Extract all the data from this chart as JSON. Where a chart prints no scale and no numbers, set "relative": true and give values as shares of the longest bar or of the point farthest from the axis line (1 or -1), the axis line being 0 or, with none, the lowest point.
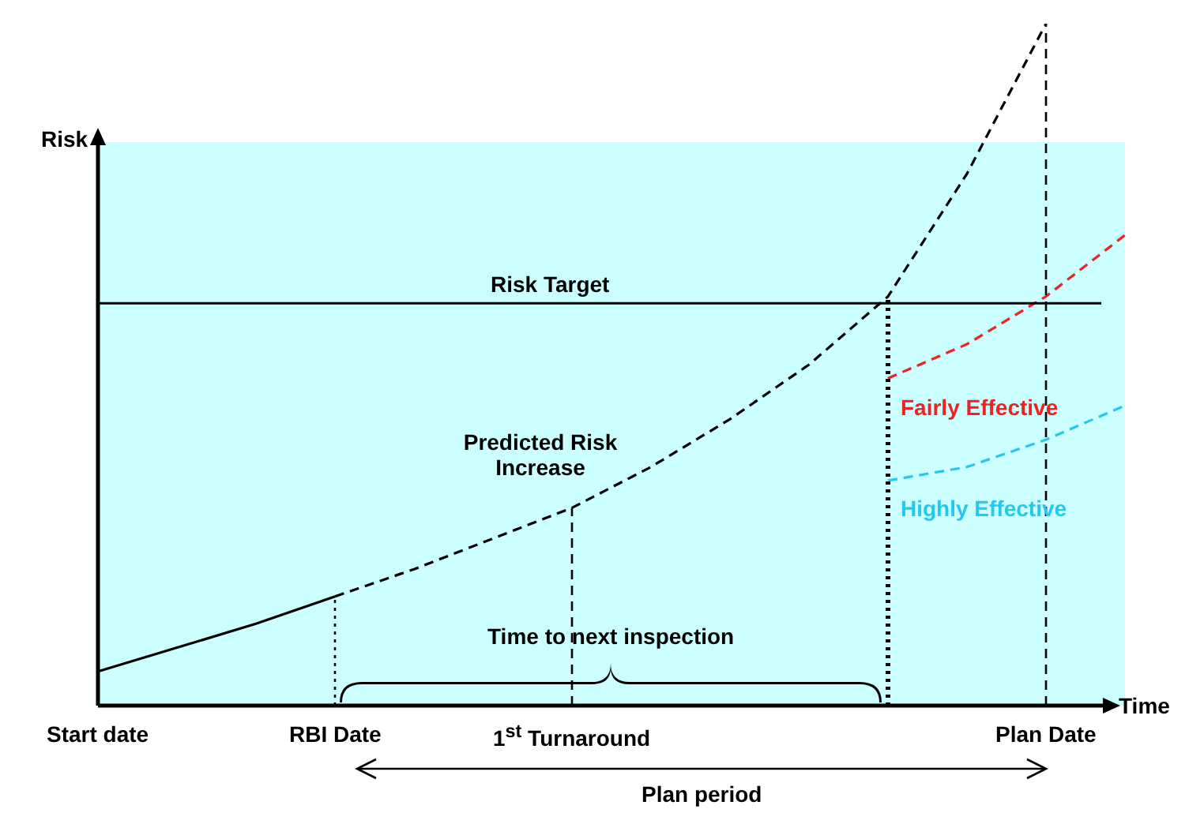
{
  "chart_data": {
    "type": "line",
    "relative": true,
    "xlabel": "Time",
    "ylabel": "Risk",
    "categories": [
      "Start date",
      null,
      null,
      "RBI Date",
      null,
      null,
      "1$^{st}$ Turnaround",
      null,
      null,
      null,
      null,
      null,
      "Plan Date",
      null
    ],
    "series": [
      {
        "color": "#000000",
        "line_style": "solid",
        "values": [
          0.05,
          0.085,
          0.12,
          0.16,
          null,
          null,
          null,
          null,
          null,
          null,
          null,
          null,
          null,
          null
        ]
      },
      {
        "color": "#000000",
        "line_style": "dashed",
        "values": [
          null,
          null,
          null,
          0.16,
          0.2,
          0.245,
          0.29,
          0.35,
          0.42,
          0.5,
          0.6,
          0.78,
          1.0,
          null
        ]
      },
      {
        "name": "Fairly Effective",
        "color": "#ee2222",
        "line_style": "dashed",
        "values": [
          null,
          null,
          null,
          null,
          null,
          null,
          null,
          null,
          null,
          null,
          0.48,
          0.53,
          0.6,
          0.69
        ]
      },
      {
        "name": "Highly Effective",
        "color": "#22c8ee",
        "line_style": "dashed",
        "values": [
          null,
          null,
          null,
          null,
          null,
          null,
          null,
          null,
          null,
          null,
          0.33,
          0.35,
          0.39,
          0.44
        ]
      }
    ],
    "ref_lines": [
      {
        "axis": "y",
        "value": 0.59,
        "label": "Risk Target",
        "color": "#000000",
        "line_style": "solid"
      },
      {
        "axis": "x",
        "value": "RBI Date",
        "color": "#000000",
        "line_style": "dotted"
      },
      {
        "axis": "x",
        "value": "1$^{st}$ Turnaround",
        "color": "#000000",
        "line_style": "dashed"
      },
      {
        "axis": "x",
        "value": "Plan Date",
        "color": "#000000",
        "line_style": "dashed"
      }
    ],
    "annotations": [
      "Predicted Risk Increase",
      "Time to next inspection",
      "Plan period"
    ],
    "legend": false,
    "marker": "none"
  }
}
